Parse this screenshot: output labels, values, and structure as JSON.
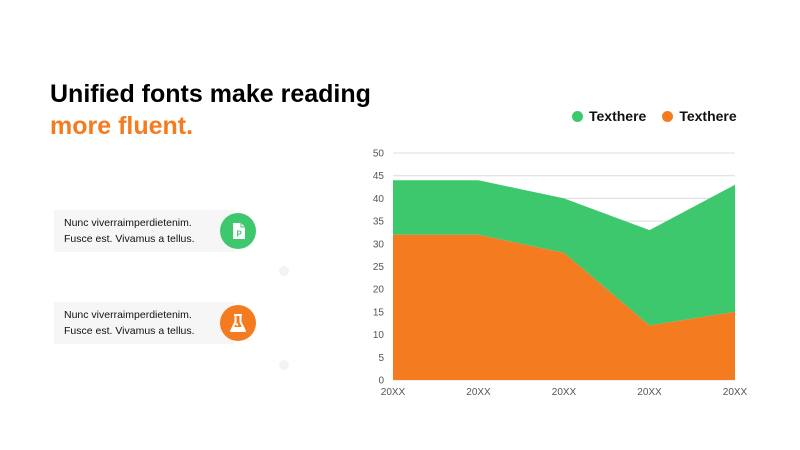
{
  "heading": {
    "line1": "Unified fonts make reading",
    "line2": "more fluent."
  },
  "colors": {
    "accent": "#F47B20",
    "green": "#3DC86E",
    "orange": "#F47B20",
    "text": "#000000"
  },
  "cards": [
    {
      "line1": "Nunc viverraimperdietenim.",
      "line2": "Fusce est. Vivamus a tellus.",
      "icon": "document-p-icon",
      "icon_color": "#3DC86E"
    },
    {
      "line1": "Nunc viverraimperdietenim.",
      "line2": "Fusce est. Vivamus a tellus.",
      "icon": "flask-icon",
      "icon_color": "#F47B20"
    }
  ],
  "chart_data": {
    "type": "area",
    "stacked": true,
    "categories": [
      "20XX",
      "20XX",
      "20XX",
      "20XX",
      "20XX"
    ],
    "series": [
      {
        "name": "Texthere",
        "color": "#3DC86E",
        "values": [
          12,
          12,
          12,
          21,
          28
        ]
      },
      {
        "name": "Texthere",
        "color": "#F47B20",
        "values": [
          32,
          32,
          28,
          12,
          15
        ]
      }
    ],
    "ylim": [
      0,
      50
    ],
    "yticks": [
      "0",
      "5",
      "10",
      "15",
      "20",
      "25",
      "30",
      "35",
      "40",
      "45",
      "50"
    ],
    "grid": true,
    "legend_position": "top-right",
    "title": "",
    "xlabel": "",
    "ylabel": ""
  }
}
